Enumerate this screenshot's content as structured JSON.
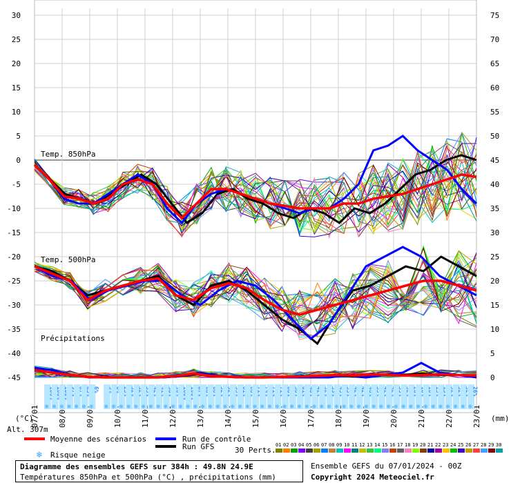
{
  "chart_data": {
    "type": "line",
    "title": "Diagramme des ensembles GEFS sur 384h : 49.8N 24.9E",
    "subtitle": "Températures 850hPa et 500hPa (°C) , précipitations (mm)",
    "run_label": "Ensemble GEFS du 07/01/2024 - 00Z",
    "copyright": "Copyright 2024 Meteociel.fr",
    "left_axis_unit": "(°C)",
    "right_axis_unit": "(mm)",
    "altitude": "Alt. 307m",
    "left_axis": {
      "ylim": [
        -45,
        30
      ],
      "ticks": [
        30,
        25,
        20,
        15,
        10,
        5,
        0,
        -5,
        -10,
        -15,
        -20,
        -25,
        -30,
        -35,
        -40,
        -45
      ]
    },
    "right_axis": {
      "ticks": [
        75,
        70,
        65,
        60,
        55,
        50,
        45,
        40,
        35,
        30,
        25,
        20,
        15,
        10,
        5,
        0
      ]
    },
    "x_dates": [
      "07/01",
      "08/01",
      "09/01",
      "10/01",
      "11/01",
      "12/01",
      "13/01",
      "14/01",
      "15/01",
      "16/01",
      "17/01",
      "18/01",
      "19/01",
      "20/01",
      "21/01",
      "22/01",
      "23/01"
    ],
    "panel_labels": {
      "t850": "Temp. 850hPa",
      "t500": "Temp. 500hPa",
      "precip": "Précipitations"
    },
    "snow_risk": [
      "100%",
      "100%",
      "100%",
      "97%",
      "87%",
      "65%",
      "6%",
      "",
      "3%",
      "6%",
      "23%",
      "32%",
      "32%",
      "35%",
      "42%",
      "41%",
      "58%",
      "90%",
      "100%",
      "100%",
      "87%",
      "68%",
      "68%",
      "32%",
      "52%",
      "55%",
      "61%",
      "68%",
      "71%",
      "74%",
      "71%",
      "71%",
      "68%",
      "58%",
      "61%",
      "48%",
      "42%",
      "32%",
      "39%",
      "45%",
      "55%",
      "42%",
      "42%",
      "48%",
      "35%",
      "42%",
      "42%",
      "35%",
      "32%",
      "26%",
      "16%",
      "16%",
      "13%",
      "13%",
      "32%",
      "32%",
      "32%",
      "26%"
    ],
    "series": [
      {
        "name": "Moyenne des scénarios",
        "color": "#ff0000",
        "t850": [
          -1,
          -4,
          -7.5,
          -8,
          -9,
          -8,
          -5,
          -4,
          -5,
          -9,
          -12,
          -9,
          -6,
          -6,
          -7,
          -8,
          -9,
          -9.5,
          -10,
          -10,
          -10,
          -9,
          -9,
          -8,
          -7.5,
          -7,
          -6,
          -5,
          -4,
          -3,
          -3.5
        ],
        "t500": [
          -22,
          -23.5,
          -25,
          -29,
          -27,
          -26,
          -25,
          -24.5,
          -28,
          -29,
          -26.5,
          -25.5,
          -26.5,
          -29,
          -31,
          -32,
          -31,
          -30,
          -29,
          -28,
          -27,
          -26,
          -25,
          -25,
          -26,
          -27
        ],
        "precip": [
          1.5,
          1,
          0.5,
          0.1,
          0,
          0,
          0,
          0,
          0.3,
          0.8,
          0.3,
          0.1,
          0,
          0,
          0.1,
          0.2,
          0.3,
          0.5,
          0.4,
          0.6,
          0.5,
          0.4,
          0.5,
          0.6,
          0.5,
          0.4
        ]
      },
      {
        "name": "Run de contrôle",
        "color": "#0000ff",
        "t850": [
          -1,
          -4,
          -8,
          -9,
          -9,
          -7,
          -5,
          -3,
          -5,
          -10,
          -13,
          -9,
          -7,
          -6,
          -7,
          -8,
          -9,
          -10,
          -11,
          -10,
          -10,
          -8,
          -5,
          2,
          3,
          5,
          2,
          0,
          -2,
          -6,
          -9
        ],
        "t500": [
          -22,
          -24,
          -25,
          -29,
          -27,
          -26,
          -25,
          -25,
          -28,
          -30,
          -27,
          -25,
          -26,
          -29,
          -33,
          -37,
          -34,
          -28,
          -22,
          -20,
          -18,
          -20,
          -24,
          -26,
          -28
        ],
        "precip": [
          2,
          1.5,
          0.5,
          0,
          0,
          0,
          0,
          0,
          0.3,
          1,
          0.3,
          0,
          0,
          0,
          0,
          0,
          0,
          0.5,
          0,
          0.5,
          1,
          3,
          1,
          0.5,
          0
        ]
      },
      {
        "name": "Run GFS",
        "color": "#000000",
        "t850": [
          -1,
          -4,
          -7,
          -8,
          -9,
          -7,
          -5,
          -3,
          -5,
          -9,
          -13,
          -11,
          -7,
          -6,
          -8,
          -9,
          -11,
          -12,
          -10,
          -11,
          -13,
          -10,
          -11,
          -9,
          -6,
          -3,
          -2,
          0,
          1,
          0
        ],
        "t500": [
          -22,
          -23,
          -25,
          -28,
          -27,
          -26,
          -25,
          -24,
          -28,
          -30,
          -26,
          -25,
          -27,
          -30,
          -33,
          -35,
          -38,
          -32,
          -27,
          -26,
          -24,
          -22,
          -23,
          -20,
          -22,
          -24
        ],
        "precip": [
          2,
          1.5,
          0.5,
          0,
          0,
          0,
          0,
          0,
          0.3,
          0.8,
          0.3,
          0,
          0,
          0,
          0,
          0,
          0.2,
          0.3,
          0,
          0.5,
          0.5,
          0.8,
          0.5,
          0.5,
          0.3
        ]
      }
    ],
    "legend": {
      "mean": "Moyenne des scénarios",
      "control": "Run de contrôle",
      "gfs": "Run GFS",
      "snow": "Risque neige",
      "perts": "30 Perts.",
      "pert_numbers": [
        "01",
        "02",
        "03",
        "04",
        "05",
        "06",
        "07",
        "08",
        "09",
        "10",
        "11",
        "12",
        "13",
        "14",
        "15",
        "16",
        "17",
        "18",
        "19",
        "20",
        "21",
        "22",
        "23",
        "24",
        "25",
        "26",
        "27",
        "28",
        "29",
        "30"
      ],
      "pert_colors": [
        "#808000",
        "#ff8000",
        "#00a000",
        "#8000ff",
        "#404040",
        "#a0a000",
        "#0080ff",
        "#c08040",
        "#00c0c0",
        "#ff00ff",
        "#008080",
        "#c0c000",
        "#40c040",
        "#00ff80",
        "#8080ff",
        "#c04000",
        "#606060",
        "#ff80c0",
        "#80ff00",
        "#804000",
        "#0000a0",
        "#a000a0",
        "#ffc000",
        "#00c000",
        "#4000c0",
        "#c0a000",
        "#ff4040",
        "#40a0ff",
        "#800000",
        "#00a0a0"
      ]
    }
  }
}
